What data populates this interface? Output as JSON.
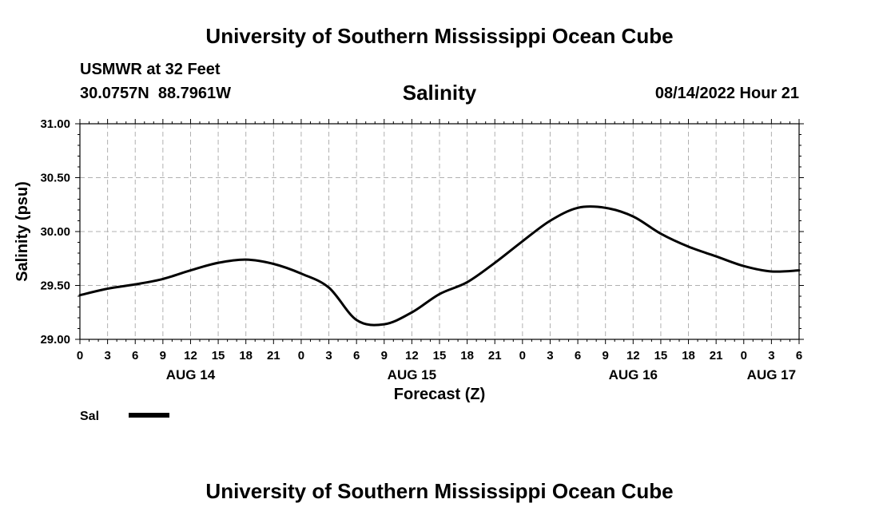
{
  "header": {
    "title": "University of Southern Mississippi Ocean Cube",
    "station": "USMWR at 32 Feet",
    "lat": "30.0757N",
    "lon": "88.7961W",
    "datetime": "08/14/2022 Hour 21"
  },
  "footer": {
    "title": "University of Southern Mississippi Ocean Cube"
  },
  "chart_data": {
    "type": "line",
    "title": "Salinity",
    "xlabel": "Forecast (Z)",
    "ylabel": "Salinity (psu)",
    "ylim": [
      29.0,
      31.0
    ],
    "xlim_hours": [
      0,
      78
    ],
    "yticks": [
      "29.00",
      "29.50",
      "30.00",
      "30.50",
      "31.00"
    ],
    "xtick_labels": [
      "0",
      "3",
      "6",
      "9",
      "12",
      "15",
      "18",
      "21",
      "0",
      "3",
      "6",
      "9",
      "12",
      "15",
      "18",
      "21",
      "0",
      "3",
      "6",
      "9",
      "12",
      "15",
      "18",
      "21",
      "0",
      "3",
      "6"
    ],
    "day_labels": [
      {
        "label": "AUG 14",
        "hour": 12
      },
      {
        "label": "AUG 15",
        "hour": 36
      },
      {
        "label": "AUG 16",
        "hour": 60
      },
      {
        "label": "AUG 17",
        "hour": 75
      }
    ],
    "grid": true,
    "legend": {
      "label": "Sal",
      "placement": "bottom-left"
    },
    "series": [
      {
        "name": "Sal",
        "color": "#000000",
        "x": [
          0,
          3,
          6,
          9,
          12,
          15,
          18,
          21,
          24,
          27,
          30,
          33,
          36,
          39,
          42,
          45,
          48,
          51,
          54,
          57,
          60,
          63,
          66,
          69,
          72,
          75,
          78
        ],
        "y": [
          29.41,
          29.47,
          29.51,
          29.56,
          29.64,
          29.71,
          29.74,
          29.7,
          29.61,
          29.48,
          29.18,
          29.14,
          29.25,
          29.42,
          29.53,
          29.71,
          29.91,
          30.1,
          30.22,
          30.22,
          30.14,
          29.98,
          29.86,
          29.77,
          29.68,
          29.63,
          29.64
        ]
      }
    ]
  }
}
